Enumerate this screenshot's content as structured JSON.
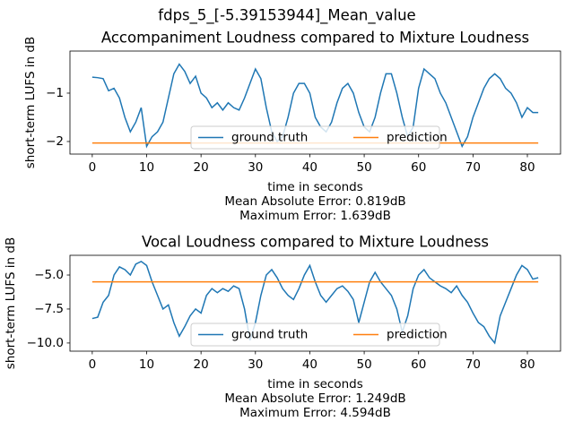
{
  "title": "fdps_5_[-5.39153944]_Mean_value",
  "chart_data": [
    {
      "type": "line",
      "title": "Accompaniment Loudness compared to Mixture Loudness",
      "xlabel": "time in seconds",
      "ylabel": "short-term LUFS in dB",
      "annotations": [
        "Mean Absolute Error: 0.819dB",
        "Maximum Error: 1.639dB"
      ],
      "legend": "lower center",
      "x": [
        0,
        1,
        2,
        3,
        4,
        5,
        6,
        7,
        8,
        9,
        10,
        11,
        12,
        13,
        14,
        15,
        16,
        17,
        18,
        19,
        20,
        21,
        22,
        23,
        24,
        25,
        26,
        27,
        28,
        29,
        30,
        31,
        32,
        33,
        34,
        35,
        36,
        37,
        38,
        39,
        40,
        41,
        42,
        43,
        44,
        45,
        46,
        47,
        48,
        49,
        50,
        51,
        52,
        53,
        54,
        55,
        56,
        57,
        58,
        59,
        60,
        61,
        62,
        63,
        64,
        65,
        66,
        67,
        68,
        69,
        70,
        71,
        72,
        73,
        74,
        75,
        76,
        77,
        78,
        79,
        80,
        81,
        82
      ],
      "series": [
        {
          "name": "ground truth",
          "color": "#1f77b4",
          "values": [
            -0.67,
            -0.68,
            -0.7,
            -0.95,
            -0.9,
            -1.1,
            -1.5,
            -1.8,
            -1.6,
            -1.3,
            -2.1,
            -1.9,
            -1.8,
            -1.6,
            -1.1,
            -0.6,
            -0.4,
            -0.55,
            -0.8,
            -0.65,
            -1.0,
            -1.1,
            -1.3,
            -1.2,
            -1.35,
            -1.2,
            -1.3,
            -1.35,
            -1.1,
            -0.8,
            -0.5,
            -0.7,
            -1.3,
            -1.8,
            -2.0,
            -1.9,
            -1.5,
            -1.0,
            -0.8,
            -0.8,
            -1.0,
            -1.5,
            -1.7,
            -1.8,
            -1.6,
            -1.2,
            -0.9,
            -0.8,
            -1.0,
            -1.4,
            -1.7,
            -1.8,
            -1.5,
            -1.0,
            -0.6,
            -0.6,
            -1.0,
            -1.5,
            -1.9,
            -1.7,
            -0.9,
            -0.5,
            -0.6,
            -0.7,
            -1.0,
            -1.2,
            -1.5,
            -1.8,
            -2.1,
            -1.9,
            -1.5,
            -1.2,
            -0.9,
            -0.7,
            -0.6,
            -0.7,
            -0.9,
            -1.0,
            -1.2,
            -1.5,
            -1.3,
            -1.4,
            -1.4
          ]
        },
        {
          "name": "prediction",
          "color": "#ff7f0e",
          "values": [
            -2.03,
            -2.03,
            -2.03,
            -2.03,
            -2.03,
            -2.03,
            -2.03,
            -2.03,
            -2.03,
            -2.03,
            -2.03,
            -2.03,
            -2.03,
            -2.03,
            -2.03,
            -2.03,
            -2.03,
            -2.03,
            -2.03,
            -2.03,
            -2.03,
            -2.03,
            -2.03,
            -2.03,
            -2.03,
            -2.03,
            -2.03,
            -2.03,
            -2.03,
            -2.03,
            -2.03,
            -2.03,
            -2.03,
            -2.03,
            -2.03,
            -2.03,
            -2.03,
            -2.03,
            -2.03,
            -2.03,
            -2.03,
            -2.03,
            -2.03,
            -2.03,
            -2.03,
            -2.03,
            -2.03,
            -2.03,
            -2.03,
            -2.03,
            -2.03,
            -2.03,
            -2.03,
            -2.03,
            -2.03,
            -2.03,
            -2.03,
            -2.03,
            -2.03,
            -2.03,
            -2.03,
            -2.03,
            -2.03,
            -2.03,
            -2.03,
            -2.03,
            -2.03,
            -2.03,
            -2.03,
            -2.03,
            -2.03,
            -2.03,
            -2.03,
            -2.03,
            -2.03,
            -2.03,
            -2.03,
            -2.03,
            -2.03,
            -2.03,
            -2.03,
            -2.03,
            -2.03
          ]
        }
      ],
      "xlim": [
        -4.1,
        86.1
      ],
      "xticks": [
        0,
        10,
        20,
        30,
        40,
        50,
        60,
        70,
        80
      ],
      "ylim": [
        -2.26,
        -0.13
      ],
      "yticks": [
        {
          "value": -2,
          "label": "−2"
        },
        {
          "value": -1,
          "label": "−1"
        }
      ]
    },
    {
      "type": "line",
      "title": "Vocal Loudness compared to Mixture Loudness",
      "xlabel": "time in seconds",
      "ylabel": "short-term LUFS in dB",
      "annotations": [
        "Mean Absolute Error: 1.249dB",
        "Maximum Error: 4.594dB"
      ],
      "legend": "lower center",
      "x": [
        0,
        1,
        2,
        3,
        4,
        5,
        6,
        7,
        8,
        9,
        10,
        11,
        12,
        13,
        14,
        15,
        16,
        17,
        18,
        19,
        20,
        21,
        22,
        23,
        24,
        25,
        26,
        27,
        28,
        29,
        30,
        31,
        32,
        33,
        34,
        35,
        36,
        37,
        38,
        39,
        40,
        41,
        42,
        43,
        44,
        45,
        46,
        47,
        48,
        49,
        50,
        51,
        52,
        53,
        54,
        55,
        56,
        57,
        58,
        59,
        60,
        61,
        62,
        63,
        64,
        65,
        66,
        67,
        68,
        69,
        70,
        71,
        72,
        73,
        74,
        75,
        76,
        77,
        78,
        79,
        80,
        81,
        82
      ],
      "series": [
        {
          "name": "ground truth",
          "color": "#1f77b4",
          "values": [
            -8.2,
            -8.1,
            -7.0,
            -6.5,
            -5.0,
            -4.4,
            -4.6,
            -5.0,
            -4.2,
            -4.0,
            -4.3,
            -5.5,
            -6.5,
            -7.5,
            -7.2,
            -8.5,
            -9.5,
            -8.8,
            -8.0,
            -7.5,
            -7.8,
            -6.5,
            -6.0,
            -6.3,
            -6.0,
            -6.2,
            -5.8,
            -6.0,
            -7.5,
            -9.8,
            -8.5,
            -6.5,
            -5.0,
            -4.6,
            -5.2,
            -6.0,
            -6.5,
            -6.8,
            -6.0,
            -5.0,
            -4.3,
            -5.5,
            -6.5,
            -7.0,
            -6.5,
            -6.0,
            -5.8,
            -6.2,
            -6.8,
            -8.5,
            -7.0,
            -5.5,
            -4.8,
            -5.5,
            -6.0,
            -6.5,
            -7.5,
            -9.2,
            -8.0,
            -6.0,
            -5.0,
            -4.6,
            -5.2,
            -5.5,
            -5.8,
            -6.0,
            -6.3,
            -5.8,
            -6.5,
            -7.0,
            -7.8,
            -8.5,
            -8.8,
            -9.5,
            -10.0,
            -8.0,
            -7.0,
            -6.0,
            -5.0,
            -4.3,
            -4.6,
            -5.3,
            -5.2
          ]
        },
        {
          "name": "prediction",
          "color": "#ff7f0e",
          "values": [
            -5.5,
            -5.5,
            -5.5,
            -5.5,
            -5.5,
            -5.5,
            -5.5,
            -5.5,
            -5.5,
            -5.5,
            -5.5,
            -5.5,
            -5.5,
            -5.5,
            -5.5,
            -5.5,
            -5.5,
            -5.5,
            -5.5,
            -5.5,
            -5.5,
            -5.5,
            -5.5,
            -5.5,
            -5.5,
            -5.5,
            -5.5,
            -5.5,
            -5.5,
            -5.5,
            -5.5,
            -5.5,
            -5.5,
            -5.5,
            -5.5,
            -5.5,
            -5.5,
            -5.5,
            -5.5,
            -5.5,
            -5.5,
            -5.5,
            -5.5,
            -5.5,
            -5.5,
            -5.5,
            -5.5,
            -5.5,
            -5.5,
            -5.5,
            -5.5,
            -5.5,
            -5.5,
            -5.5,
            -5.5,
            -5.5,
            -5.5,
            -5.5,
            -5.5,
            -5.5,
            -5.5,
            -5.5,
            -5.5,
            -5.5,
            -5.5,
            -5.5,
            -5.5,
            -5.5,
            -5.5,
            -5.5,
            -5.5,
            -5.5,
            -5.5,
            -5.5,
            -5.5,
            -5.5,
            -5.5,
            -5.5,
            -5.5,
            -5.5,
            -5.5,
            -5.5,
            -5.5
          ]
        }
      ],
      "xlim": [
        -4.1,
        86.1
      ],
      "xticks": [
        0,
        10,
        20,
        30,
        40,
        50,
        60,
        70,
        80
      ],
      "ylim": [
        -10.6,
        -3.55
      ],
      "yticks": [
        {
          "value": -10,
          "label": "−10.0"
        },
        {
          "value": -7.5,
          "label": "−7.5"
        },
        {
          "value": -5,
          "label": "−5.0"
        }
      ]
    }
  ]
}
